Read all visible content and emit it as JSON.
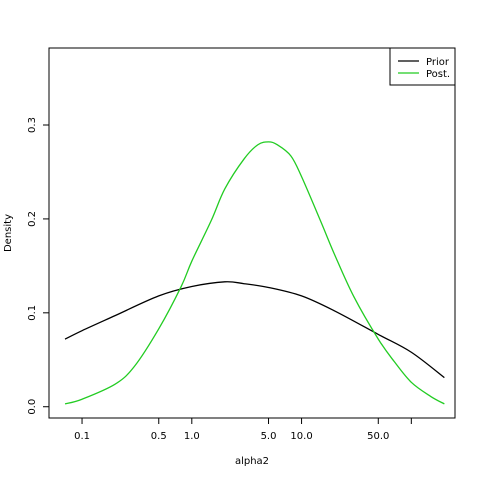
{
  "chart_data": {
    "type": "line",
    "title": "",
    "xlabel": "alpha2",
    "ylabel": "Density",
    "x_scale": "log",
    "xlim": [
      0.05,
      250
    ],
    "ylim": [
      -0.012,
      0.382
    ],
    "x_ticks": [
      {
        "value": 0.1,
        "label": "0.1"
      },
      {
        "value": 0.5,
        "label": "0.5"
      },
      {
        "value": 1.0,
        "label": "1.0"
      },
      {
        "value": 5.0,
        "label": "5.0"
      },
      {
        "value": 10.0,
        "label": "10.0"
      },
      {
        "value": 50.0,
        "label": "50.0"
      },
      {
        "value": 100.0,
        "label": ""
      }
    ],
    "y_ticks": [
      {
        "value": 0.0,
        "label": "0.0"
      },
      {
        "value": 0.1,
        "label": "0.1"
      },
      {
        "value": 0.2,
        "label": "0.2"
      },
      {
        "value": 0.3,
        "label": "0.3"
      }
    ],
    "legend_position": "top-right",
    "grid": false,
    "series": [
      {
        "name": "Prior",
        "color": "#000000",
        "x": [
          0.07,
          0.1,
          0.2,
          0.5,
          1.0,
          2.0,
          3.0,
          5.0,
          10.0,
          20.0,
          50.0,
          100.0,
          200.0
        ],
        "y": [
          0.072,
          0.081,
          0.097,
          0.118,
          0.128,
          0.133,
          0.131,
          0.127,
          0.118,
          0.102,
          0.077,
          0.058,
          0.031
        ]
      },
      {
        "name": "Post.",
        "color": "#22cc22",
        "x": [
          0.07,
          0.1,
          0.2,
          0.3,
          0.5,
          0.8,
          1.0,
          1.5,
          2.0,
          3.0,
          4.0,
          5.0,
          6.0,
          8.0,
          10.0,
          15.0,
          20.0,
          30.0,
          50.0,
          70.0,
          100.0,
          150.0,
          200.0
        ],
        "y": [
          0.003,
          0.008,
          0.024,
          0.043,
          0.083,
          0.128,
          0.155,
          0.198,
          0.232,
          0.264,
          0.279,
          0.282,
          0.279,
          0.267,
          0.245,
          0.197,
          0.162,
          0.117,
          0.072,
          0.048,
          0.026,
          0.011,
          0.003
        ]
      }
    ]
  }
}
